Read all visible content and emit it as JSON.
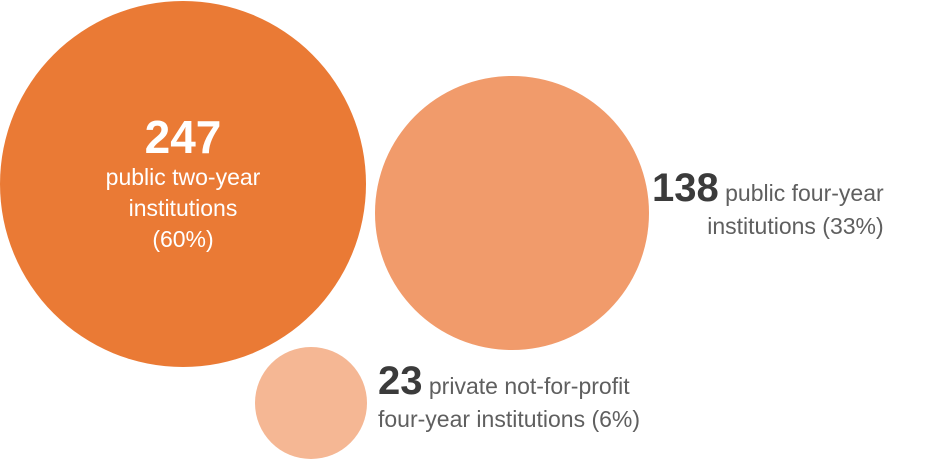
{
  "chart_data": {
    "type": "bubble",
    "unit": "institutions",
    "items": [
      {
        "value": 247,
        "value_label": "247",
        "label_lines": [
          "public two-year",
          "institutions",
          "(60%)"
        ],
        "percent": 60,
        "color": "#ea7a35"
      },
      {
        "value": 138,
        "value_label": "138",
        "label_lines": [
          "public four-year",
          "institutions (33%)"
        ],
        "percent": 33,
        "color": "#f19b6b"
      },
      {
        "value": 23,
        "value_label": "23",
        "label_lines": [
          "private not-for-profit",
          "four-year institutions (6%)"
        ],
        "percent": 6,
        "color": "#f5b794"
      }
    ]
  }
}
